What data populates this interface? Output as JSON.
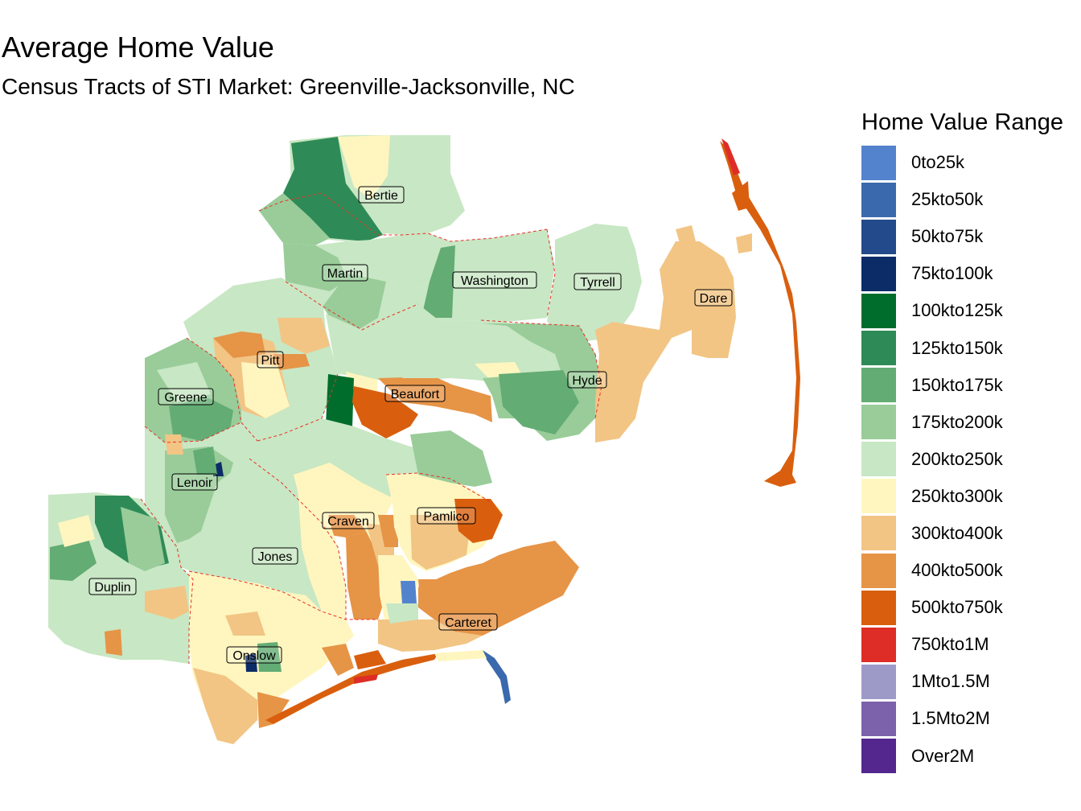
{
  "title": "Average Home Value",
  "subtitle": "Census Tracts of STI Market: Greenville-Jacksonville, NC",
  "legend": {
    "title": "Home Value Range",
    "items": [
      {
        "label": "0to25k",
        "color": "#5483CE"
      },
      {
        "label": "25kto50k",
        "color": "#3B69AD"
      },
      {
        "label": "50kto75k",
        "color": "#234A8A"
      },
      {
        "label": "75kto100k",
        "color": "#0C2C68"
      },
      {
        "label": "100kto125k",
        "color": "#006D2C"
      },
      {
        "label": "125kto150k",
        "color": "#2E8B57"
      },
      {
        "label": "150kto175k",
        "color": "#63AC74"
      },
      {
        "label": "175kto200k",
        "color": "#99CC99"
      },
      {
        "label": "200kto250k",
        "color": "#C8E7C4"
      },
      {
        "label": "250kto300k",
        "color": "#FFF6BF"
      },
      {
        "label": "300kto400k",
        "color": "#F2C585"
      },
      {
        "label": "400kto500k",
        "color": "#E69446"
      },
      {
        "label": "500kto750k",
        "color": "#D95F0E"
      },
      {
        "label": "750kto1M",
        "color": "#DE2D26"
      },
      {
        "label": "1Mto1.5M",
        "color": "#9E9AC8"
      },
      {
        "label": "1.5Mto2M",
        "color": "#7B62AB"
      },
      {
        "label": "Over2M",
        "color": "#54278F"
      }
    ]
  },
  "counties": [
    {
      "name": "Bertie"
    },
    {
      "name": "Martin"
    },
    {
      "name": "Washington"
    },
    {
      "name": "Tyrrell"
    },
    {
      "name": "Dare"
    },
    {
      "name": "Pitt"
    },
    {
      "name": "Greene"
    },
    {
      "name": "Beaufort"
    },
    {
      "name": "Hyde"
    },
    {
      "name": "Lenoir"
    },
    {
      "name": "Craven"
    },
    {
      "name": "Pamlico"
    },
    {
      "name": "Jones"
    },
    {
      "name": "Duplin"
    },
    {
      "name": "Carteret"
    },
    {
      "name": "Onslow"
    }
  ]
}
